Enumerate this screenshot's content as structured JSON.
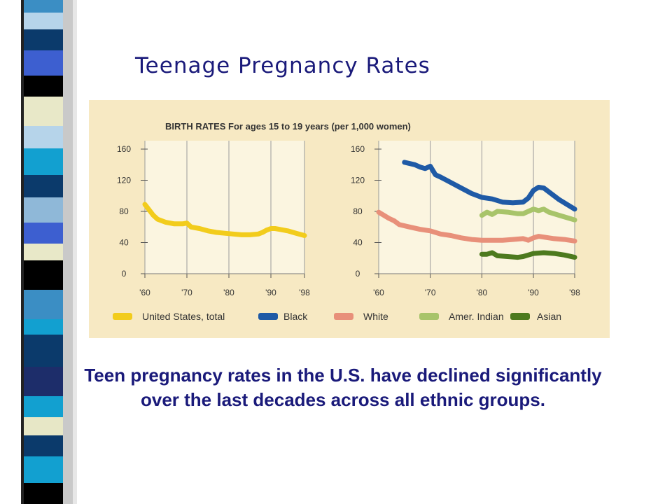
{
  "slide": {
    "title": "Teenage Pregnancy Rates",
    "caption": "Teen pregnancy rates in the U.S. have declined significantly over the last decades across all ethnic groups."
  },
  "chart_data": [
    {
      "type": "line",
      "title": "BIRTH RATES For ages 15 to 19 years (per 1,000 women)",
      "x_ticks": [
        "'60",
        "'70",
        "'80",
        "'90",
        "'98"
      ],
      "xlim": [
        1960,
        1998
      ],
      "y_ticks": [
        0,
        40,
        80,
        120,
        160
      ],
      "ylim": [
        0,
        160
      ],
      "grid": true,
      "series": [
        {
          "name": "United States, total",
          "color": "#f2cc1c",
          "points": [
            [
              1960,
              89
            ],
            [
              1961,
              82
            ],
            [
              1962,
              75
            ],
            [
              1963,
              70
            ],
            [
              1965,
              66
            ],
            [
              1967,
              64
            ],
            [
              1969,
              64
            ],
            [
              1970,
              65
            ],
            [
              1971,
              60
            ],
            [
              1973,
              58
            ],
            [
              1975,
              55
            ],
            [
              1977,
              53
            ],
            [
              1979,
              52
            ],
            [
              1981,
              51
            ],
            [
              1983,
              50
            ],
            [
              1985,
              50
            ],
            [
              1987,
              51
            ],
            [
              1988,
              53
            ],
            [
              1989,
              56
            ],
            [
              1990,
              58
            ],
            [
              1991,
              58
            ],
            [
              1992,
              57
            ],
            [
              1994,
              55
            ],
            [
              1996,
              52
            ],
            [
              1998,
              49
            ]
          ]
        }
      ]
    },
    {
      "type": "line",
      "x_ticks": [
        "'60",
        "'70",
        "'80",
        "'90",
        "'98"
      ],
      "xlim": [
        1960,
        1998
      ],
      "y_ticks": [
        0,
        40,
        80,
        120,
        160
      ],
      "ylim": [
        0,
        160
      ],
      "grid": true,
      "series": [
        {
          "name": "Black",
          "color": "#1f5aa6",
          "points": [
            [
              1965,
              143
            ],
            [
              1967,
              140
            ],
            [
              1968,
              137
            ],
            [
              1969,
              135
            ],
            [
              1970,
              138
            ],
            [
              1971,
              127
            ],
            [
              1972,
              124
            ],
            [
              1974,
              117
            ],
            [
              1976,
              110
            ],
            [
              1978,
              103
            ],
            [
              1980,
              98
            ],
            [
              1982,
              96
            ],
            [
              1984,
              92
            ],
            [
              1986,
              91
            ],
            [
              1988,
              92
            ],
            [
              1989,
              97
            ],
            [
              1990,
              107
            ],
            [
              1991,
              111
            ],
            [
              1992,
              110
            ],
            [
              1993,
              105
            ],
            [
              1995,
              95
            ],
            [
              1997,
              87
            ],
            [
              1998,
              83
            ]
          ]
        },
        {
          "name": "White",
          "color": "#e8907a",
          "points": [
            [
              1960,
              79
            ],
            [
              1962,
              71
            ],
            [
              1963,
              68
            ],
            [
              1964,
              63
            ],
            [
              1966,
              60
            ],
            [
              1968,
              57
            ],
            [
              1970,
              55
            ],
            [
              1972,
              51
            ],
            [
              1974,
              49
            ],
            [
              1976,
              46
            ],
            [
              1978,
              44
            ],
            [
              1980,
              43
            ],
            [
              1982,
              43
            ],
            [
              1984,
              43
            ],
            [
              1986,
              44
            ],
            [
              1988,
              45
            ],
            [
              1989,
              43
            ],
            [
              1990,
              46
            ],
            [
              1991,
              48
            ],
            [
              1992,
              47
            ],
            [
              1994,
              45
            ],
            [
              1996,
              44
            ],
            [
              1998,
              42
            ]
          ]
        },
        {
          "name": "Amer. Indian",
          "color": "#a8c46a",
          "points": [
            [
              1980,
              75
            ],
            [
              1981,
              79
            ],
            [
              1982,
              76
            ],
            [
              1983,
              80
            ],
            [
              1985,
              79
            ],
            [
              1987,
              77
            ],
            [
              1988,
              77
            ],
            [
              1989,
              80
            ],
            [
              1990,
              83
            ],
            [
              1991,
              81
            ],
            [
              1992,
              83
            ],
            [
              1993,
              79
            ],
            [
              1995,
              75
            ],
            [
              1997,
              71
            ],
            [
              1998,
              69
            ]
          ]
        },
        {
          "name": "Asian",
          "color": "#4d7a1e",
          "points": [
            [
              1980,
              25
            ],
            [
              1981,
              25
            ],
            [
              1982,
              27
            ],
            [
              1983,
              23
            ],
            [
              1985,
              22
            ],
            [
              1987,
              21
            ],
            [
              1988,
              22
            ],
            [
              1989,
              24
            ],
            [
              1990,
              26
            ],
            [
              1992,
              27
            ],
            [
              1994,
              26
            ],
            [
              1996,
              24
            ],
            [
              1998,
              21
            ]
          ]
        }
      ]
    }
  ],
  "legend": [
    {
      "label": "United States, total",
      "color": "#f2cc1c"
    },
    {
      "label": "Black",
      "color": "#1f5aa6"
    },
    {
      "label": "White",
      "color": "#e8907a"
    },
    {
      "label": "Amer. Indian",
      "color": "#a8c46a"
    },
    {
      "label": "Asian",
      "color": "#4d7a1e"
    }
  ],
  "stripe_colors": [
    "#3b8ec4",
    "#b6d4ea",
    "#0b3a6b",
    "#e8e8c8",
    "#12a0d0",
    "#000000",
    "#3d5fd0",
    "#8fb8d8",
    "#e7e7c6",
    "#1d2d6a"
  ]
}
